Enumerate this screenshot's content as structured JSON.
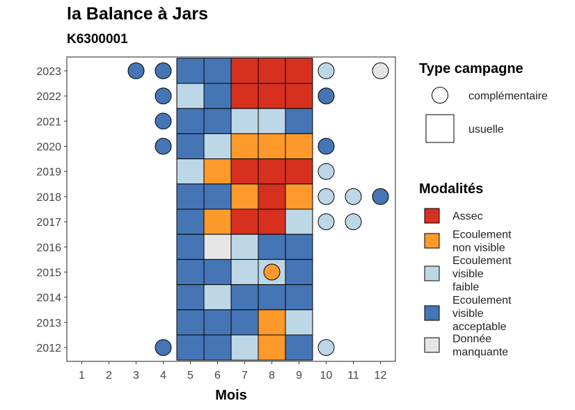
{
  "chart_data": {
    "type": "heatmap",
    "title": "la Balance à Jars",
    "subtitle": "K6300001",
    "xlabel": "Mois",
    "ylabel": "",
    "x_ticks": [
      "1",
      "2",
      "3",
      "4",
      "5",
      "6",
      "7",
      "8",
      "9",
      "10",
      "11",
      "12"
    ],
    "y_ticks": [
      "2012",
      "2013",
      "2014",
      "2015",
      "2016",
      "2017",
      "2018",
      "2019",
      "2020",
      "2021",
      "2022",
      "2023"
    ],
    "grid": false,
    "legend_position": "right",
    "colors": {
      "Assec": "#d7301f",
      "Ecoulement non visible": "#fd9a2b",
      "Ecoulement visible faible": "#bdd7e7",
      "Ecoulement visible acceptable": "#4575b4",
      "Donnée manquante": "#e5e5e5"
    },
    "legend_campagne": {
      "title": "Type campagne",
      "items": [
        {
          "label": "complémentaire",
          "shape": "circle"
        },
        {
          "label": "usuelle",
          "shape": "square"
        }
      ]
    },
    "legend_modalites": {
      "title": "Modalités",
      "items": [
        {
          "key": "Assec",
          "lines": [
            "Assec"
          ]
        },
        {
          "key": "Ecoulement non visible",
          "lines": [
            "Ecoulement",
            "non visible"
          ]
        },
        {
          "key": "Ecoulement visible faible",
          "lines": [
            "Ecoulement",
            "visible",
            "faible"
          ]
        },
        {
          "key": "Ecoulement visible acceptable",
          "lines": [
            "Ecoulement",
            "visible",
            "acceptable"
          ]
        },
        {
          "key": "Donnée manquante",
          "lines": [
            "Donnée",
            "manquante"
          ]
        }
      ]
    },
    "usuelle": [
      {
        "year": 2023,
        "values": [
          "Ecoulement visible acceptable",
          "Ecoulement visible acceptable",
          "Assec",
          "Assec",
          "Assec"
        ]
      },
      {
        "year": 2022,
        "values": [
          "Ecoulement visible faible",
          "Ecoulement visible acceptable",
          "Assec",
          "Assec",
          "Assec"
        ]
      },
      {
        "year": 2021,
        "values": [
          "Ecoulement visible acceptable",
          "Ecoulement visible acceptable",
          "Ecoulement visible faible",
          "Ecoulement visible faible",
          "Ecoulement visible acceptable"
        ]
      },
      {
        "year": 2020,
        "values": [
          "Ecoulement visible acceptable",
          "Ecoulement visible faible",
          "Ecoulement non visible",
          "Ecoulement non visible",
          "Ecoulement non visible"
        ]
      },
      {
        "year": 2019,
        "values": [
          "Ecoulement visible faible",
          "Ecoulement non visible",
          "Assec",
          "Assec",
          "Assec"
        ]
      },
      {
        "year": 2018,
        "values": [
          "Ecoulement visible acceptable",
          "Ecoulement visible acceptable",
          "Ecoulement non visible",
          "Assec",
          "Ecoulement non visible"
        ]
      },
      {
        "year": 2017,
        "values": [
          "Ecoulement visible acceptable",
          "Ecoulement non visible",
          "Assec",
          "Assec",
          "Ecoulement visible faible"
        ]
      },
      {
        "year": 2016,
        "values": [
          "Ecoulement visible acceptable",
          "Donnée manquante",
          "Ecoulement visible faible",
          "Ecoulement visible acceptable",
          "Ecoulement visible acceptable"
        ]
      },
      {
        "year": 2015,
        "values": [
          "Ecoulement visible acceptable",
          "Ecoulement visible acceptable",
          "Ecoulement visible faible",
          "Ecoulement visible faible",
          "Ecoulement visible acceptable"
        ]
      },
      {
        "year": 2014,
        "values": [
          "Ecoulement visible acceptable",
          "Ecoulement visible faible",
          "Ecoulement visible acceptable",
          "Ecoulement visible acceptable",
          "Ecoulement visible acceptable"
        ]
      },
      {
        "year": 2013,
        "values": [
          "Ecoulement visible acceptable",
          "Ecoulement visible acceptable",
          "Ecoulement visible acceptable",
          "Ecoulement non visible",
          "Ecoulement visible faible"
        ]
      },
      {
        "year": 2012,
        "values": [
          "Ecoulement visible acceptable",
          "Ecoulement visible acceptable",
          "Ecoulement visible faible",
          "Ecoulement non visible",
          "Ecoulement visible acceptable"
        ]
      }
    ],
    "usuelle_months": [
      5,
      6,
      7,
      8,
      9
    ],
    "complementaire": [
      {
        "year": 2023,
        "month": 3,
        "value": "Ecoulement visible acceptable"
      },
      {
        "year": 2023,
        "month": 4,
        "value": "Ecoulement visible acceptable"
      },
      {
        "year": 2023,
        "month": 10,
        "value": "Ecoulement visible faible"
      },
      {
        "year": 2023,
        "month": 12,
        "value": "Donnée manquante"
      },
      {
        "year": 2022,
        "month": 4,
        "value": "Ecoulement visible acceptable"
      },
      {
        "year": 2022,
        "month": 10,
        "value": "Ecoulement visible acceptable"
      },
      {
        "year": 2021,
        "month": 4,
        "value": "Ecoulement visible acceptable"
      },
      {
        "year": 2020,
        "month": 4,
        "value": "Ecoulement visible acceptable"
      },
      {
        "year": 2020,
        "month": 10,
        "value": "Ecoulement visible acceptable"
      },
      {
        "year": 2019,
        "month": 10,
        "value": "Ecoulement visible faible"
      },
      {
        "year": 2018,
        "month": 10,
        "value": "Ecoulement visible faible"
      },
      {
        "year": 2018,
        "month": 11,
        "value": "Ecoulement visible faible"
      },
      {
        "year": 2018,
        "month": 12,
        "value": "Ecoulement visible acceptable"
      },
      {
        "year": 2017,
        "month": 10,
        "value": "Ecoulement visible faible"
      },
      {
        "year": 2017,
        "month": 11,
        "value": "Ecoulement visible faible"
      },
      {
        "year": 2015,
        "month": 8,
        "value": "Ecoulement non visible"
      },
      {
        "year": 2012,
        "month": 4,
        "value": "Ecoulement visible acceptable"
      },
      {
        "year": 2012,
        "month": 10,
        "value": "Ecoulement visible faible"
      }
    ]
  }
}
